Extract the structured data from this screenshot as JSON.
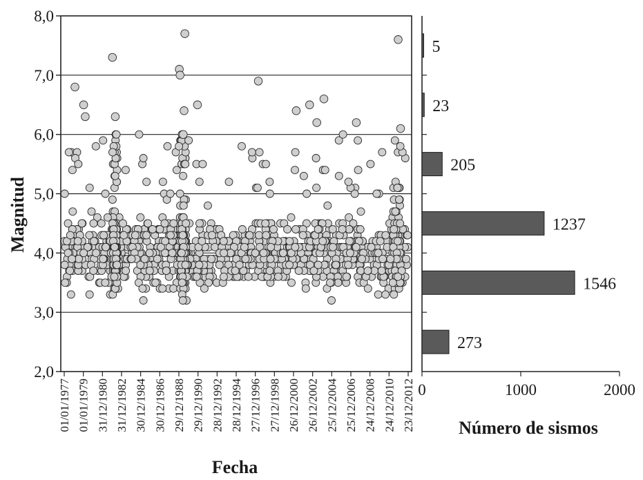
{
  "chart_data": [
    {
      "type": "scatter",
      "title": "",
      "xlabel": "Fecha",
      "ylabel": "Magnitud",
      "ylim": [
        2.0,
        8.0
      ],
      "xlim": [
        "1977-01-01",
        "2014-01-01"
      ],
      "ytick_labels": [
        "2,0",
        "3,0",
        "4,0",
        "5,0",
        "6,0",
        "7,0",
        "8,0"
      ],
      "xtick_labels": [
        "01/01/1977",
        "01/01/1979",
        "31/12/1980",
        "31/12/1982",
        "30/12/1984",
        "30/12/1986",
        "29/12/1988",
        "29/12/1990",
        "28/12/1992",
        "28/12/1994",
        "27/12/1996",
        "27/12/1998",
        "26/12/2000",
        "26/12/2002",
        "25/12/2004",
        "25/12/2006",
        "24/12/2008",
        "24/12/2010",
        "23/12/2012"
      ],
      "grid": "horizontal",
      "marker_color": "#cfcfcf",
      "notable_events": [
        {
          "x": "1982-06-15",
          "y": 7.3
        },
        {
          "x": "1982-10-01",
          "y": 6.3
        },
        {
          "x": "1990-02-01",
          "y": 7.7
        },
        {
          "x": "1989-07-01",
          "y": 7.1
        },
        {
          "x": "1989-08-01",
          "y": 7.0
        },
        {
          "x": "1997-11-01",
          "y": 6.9
        },
        {
          "x": "2012-08-01",
          "y": 7.6
        },
        {
          "x": "1978-07-01",
          "y": 6.8
        },
        {
          "x": "1979-06-01",
          "y": 6.5
        },
        {
          "x": "1979-08-01",
          "y": 6.3
        },
        {
          "x": "2004-10-01",
          "y": 6.6
        },
        {
          "x": "2001-11-01",
          "y": 6.4
        },
        {
          "x": "2003-04-01",
          "y": 6.5
        },
        {
          "x": "1991-06-01",
          "y": 6.5
        },
        {
          "x": "1990-01-01",
          "y": 6.4
        },
        {
          "x": "1989-12-01",
          "y": 6.0
        },
        {
          "x": "2012-11-01",
          "y": 6.1
        },
        {
          "x": "2008-03-01",
          "y": 6.2
        },
        {
          "x": "2004-01-01",
          "y": 6.2
        }
      ]
    },
    {
      "type": "bar",
      "orientation": "horizontal",
      "xlabel": "Número de sismos",
      "xlim": [
        0,
        2000
      ],
      "xtick_labels": [
        "0",
        "1000",
        "2000"
      ],
      "bar_color": "#5a5a5a",
      "bins": [
        {
          "range": [
            2.0,
            3.0
          ],
          "value": 273,
          "label": "273"
        },
        {
          "range": [
            3.0,
            4.0
          ],
          "value": 1546,
          "label": "1546"
        },
        {
          "range": [
            4.0,
            5.0
          ],
          "value": 1237,
          "label": "1237"
        },
        {
          "range": [
            5.0,
            6.0
          ],
          "value": 205,
          "label": "205"
        },
        {
          "range": [
            6.0,
            7.0
          ],
          "value": 23,
          "label": "23"
        },
        {
          "range": [
            7.0,
            8.0
          ],
          "value": 5,
          "label": "5"
        }
      ]
    }
  ]
}
